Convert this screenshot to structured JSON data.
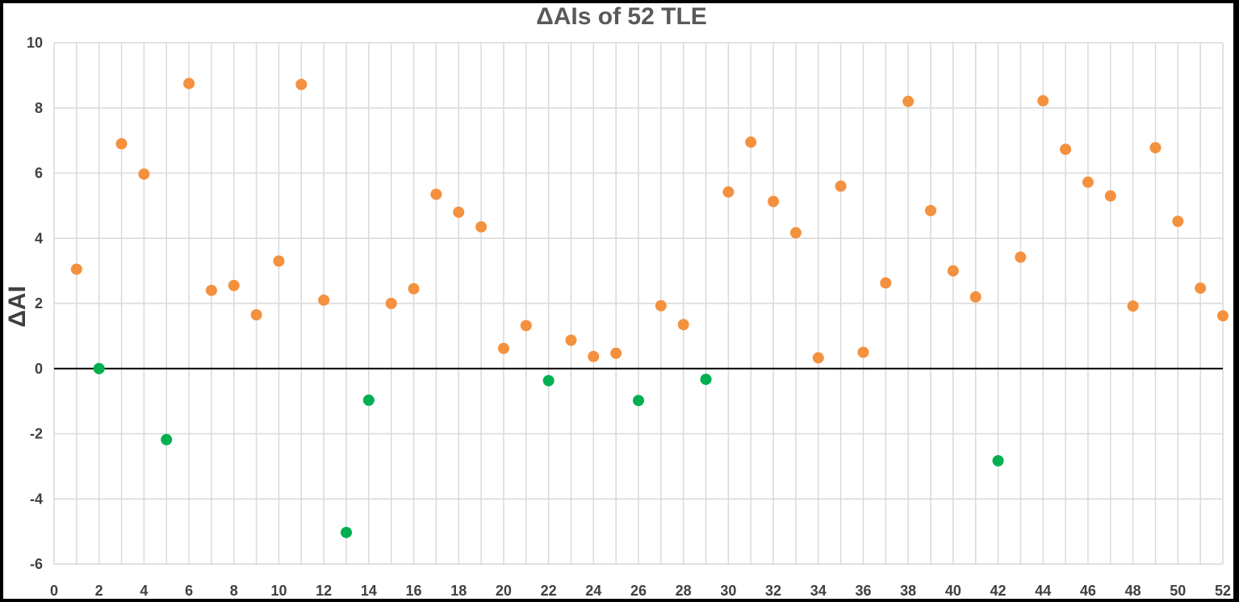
{
  "chart_data": {
    "type": "scatter",
    "title": "ΔAIs of 52 TLE",
    "xlabel": "",
    "ylabel": "ΔAI",
    "xlim": [
      0,
      52
    ],
    "ylim": [
      -6,
      10
    ],
    "x_ticks": [
      "0",
      "2",
      "4",
      "6",
      "8",
      "10",
      "12",
      "14",
      "16",
      "18",
      "20",
      "22",
      "24",
      "26",
      "28",
      "30",
      "32",
      "34",
      "36",
      "38",
      "40",
      "42",
      "44",
      "46",
      "48",
      "50",
      "52"
    ],
    "y_ticks": [
      "-6",
      "-4",
      "-2",
      "0",
      "2",
      "4",
      "6",
      "8",
      "10"
    ],
    "grid": true,
    "legend": "none",
    "colors": {
      "positive": "#f4913f",
      "negative": "#00b050",
      "zero_line": "#000000",
      "grid": "#d9d9d9"
    },
    "series": [
      {
        "color_key": "positive",
        "points": [
          [
            1,
            3.05
          ],
          [
            3,
            6.9
          ],
          [
            4,
            5.97
          ],
          [
            6,
            8.75
          ],
          [
            7,
            2.4
          ],
          [
            8,
            2.55
          ],
          [
            9,
            1.65
          ],
          [
            10,
            3.3
          ],
          [
            11,
            8.72
          ],
          [
            12,
            2.1
          ],
          [
            15,
            2.0
          ],
          [
            16,
            2.45
          ],
          [
            17,
            5.35
          ],
          [
            18,
            4.8
          ],
          [
            19,
            4.35
          ],
          [
            20,
            0.62
          ],
          [
            21,
            1.32
          ],
          [
            23,
            0.87
          ],
          [
            24,
            0.37
          ],
          [
            25,
            0.47
          ],
          [
            27,
            1.93
          ],
          [
            28,
            1.35
          ],
          [
            30,
            5.42
          ],
          [
            31,
            6.95
          ],
          [
            32,
            5.13
          ],
          [
            33,
            4.17
          ],
          [
            34,
            0.33
          ],
          [
            35,
            5.6
          ],
          [
            36,
            0.5
          ],
          [
            37,
            2.63
          ],
          [
            38,
            8.2
          ],
          [
            39,
            4.85
          ],
          [
            40,
            3.0
          ],
          [
            41,
            2.2
          ],
          [
            43,
            3.42
          ],
          [
            44,
            8.22
          ],
          [
            45,
            6.73
          ],
          [
            46,
            5.72
          ],
          [
            47,
            5.3
          ],
          [
            48,
            1.92
          ],
          [
            49,
            6.78
          ],
          [
            50,
            4.52
          ],
          [
            51,
            2.47
          ],
          [
            52,
            1.62
          ]
        ]
      },
      {
        "color_key": "negative",
        "points": [
          [
            2,
            0.0
          ],
          [
            5,
            -2.18
          ],
          [
            13,
            -5.03
          ],
          [
            14,
            -0.97
          ],
          [
            22,
            -0.37
          ],
          [
            26,
            -0.98
          ],
          [
            29,
            -0.33
          ],
          [
            42,
            -2.83
          ]
        ]
      }
    ]
  }
}
